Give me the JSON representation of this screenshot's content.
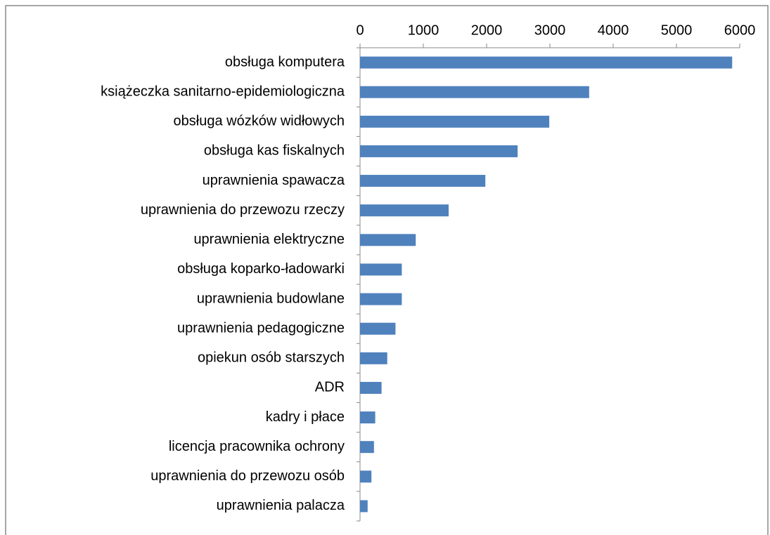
{
  "chart_data": {
    "type": "barh",
    "categories": [
      "obsługa komputera",
      "książeczka sanitarno-epidemiologiczna",
      "obsługa wózków widłowych",
      "obsługa kas fiskalnych",
      "uprawnienia spawacza",
      "uprawnienia do przewozu rzeczy",
      "uprawnienia elektryczne",
      "obsługa koparko-ładowarki",
      "uprawnienia budowlane",
      "uprawnienia pedagogiczne",
      "opiekun osób starszych",
      "ADR",
      "kadry i płace",
      "licencja pracownika ochrony",
      "uprawnienia do przewozu osób",
      "uprawnienia palacza"
    ],
    "values": [
      5880,
      3620,
      2990,
      2490,
      1980,
      1400,
      880,
      660,
      660,
      560,
      430,
      340,
      240,
      220,
      180,
      120
    ],
    "color": "#4f81bd",
    "xlim": [
      0,
      6000
    ],
    "xticks": [
      0,
      1000,
      2000,
      3000,
      4000,
      5000,
      6000
    ],
    "grid": false
  }
}
